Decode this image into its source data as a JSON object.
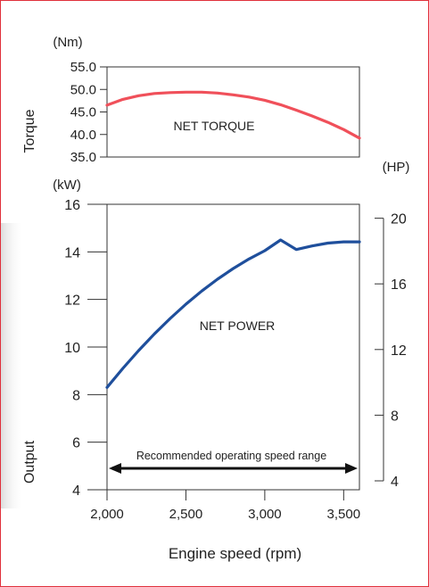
{
  "chart_data": [
    {
      "type": "line",
      "title": "",
      "ylabel": "Torque",
      "y_unit": "(Nm)",
      "xlim": [
        2000,
        3600
      ],
      "ylim": [
        35,
        55
      ],
      "yticks": [
        "35.0",
        "40.0",
        "45.0",
        "50.0",
        "55.0"
      ],
      "series": [
        {
          "name": "NET TORQUE",
          "color": "#f0505a",
          "x": [
            2000,
            2100,
            2200,
            2300,
            2400,
            2500,
            2600,
            2700,
            2800,
            2900,
            3000,
            3100,
            3200,
            3300,
            3400,
            3500,
            3600
          ],
          "y": [
            46.5,
            47.8,
            48.6,
            49.1,
            49.3,
            49.4,
            49.4,
            49.2,
            48.8,
            48.3,
            47.6,
            46.6,
            45.4,
            44.1,
            42.7,
            41.1,
            39.2
          ]
        }
      ]
    },
    {
      "type": "line",
      "ylabel": "Output",
      "y_unit": "(kW)",
      "xlabel": "Engine speed (rpm)",
      "xlim": [
        2000,
        3600
      ],
      "xticks": [
        "2,000",
        "2,500",
        "3,000",
        "3,500"
      ],
      "xtick_values": [
        2000,
        2500,
        3000,
        3500
      ],
      "ylim": [
        4,
        16
      ],
      "yticks": [
        "4",
        "6",
        "8",
        "10",
        "12",
        "14",
        "16"
      ],
      "y2_unit": "(HP)",
      "y2lim": [
        4,
        20
      ],
      "y2ticks": [
        "4",
        "8",
        "12",
        "16",
        "20"
      ],
      "series": [
        {
          "name": "NET POWER",
          "color": "#1f4f9c",
          "x": [
            2000,
            2100,
            2200,
            2300,
            2400,
            2500,
            2600,
            2700,
            2800,
            2900,
            3000,
            3100,
            3200,
            3300,
            3400,
            3500,
            3600
          ],
          "y": [
            8.3,
            9.1,
            9.85,
            10.55,
            11.2,
            11.8,
            12.35,
            12.85,
            13.3,
            13.7,
            14.05,
            14.5,
            14.1,
            14.25,
            14.37,
            14.42,
            14.42
          ]
        }
      ],
      "annotation": {
        "text": "Recommended operating speed range",
        "x_start": 2000,
        "x_end": 3600,
        "y": 4.9
      }
    }
  ]
}
